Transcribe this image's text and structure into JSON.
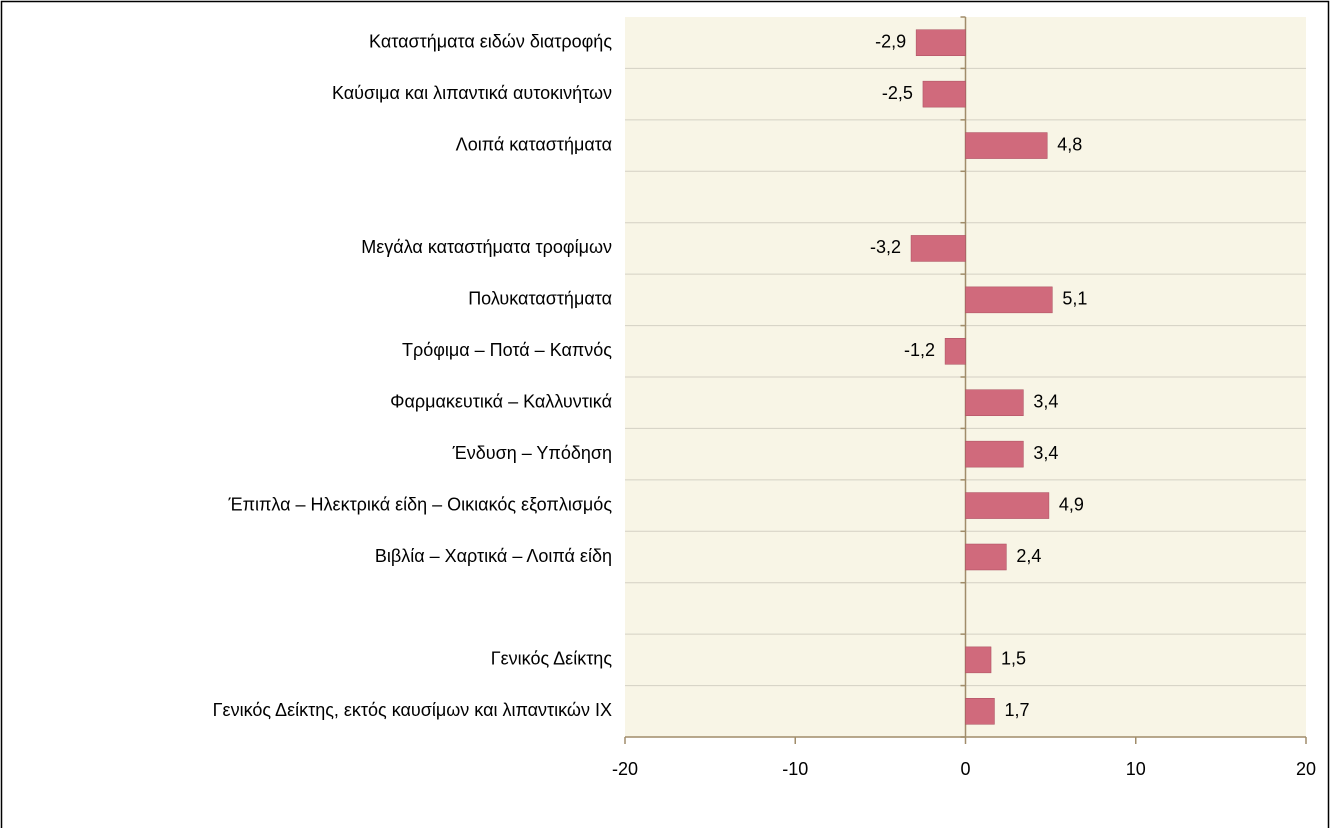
{
  "chart_data": {
    "type": "hbar",
    "categories": [
      "Καταστήματα ειδών διατροφής",
      "Καύσιμα και λιπαντικά αυτοκινήτων",
      "Λοιπά καταστήματα",
      null,
      "Μεγάλα καταστήματα τροφίμων",
      "Πολυκαταστήματα",
      "Τρόφιμα – Ποτά – Καπνός",
      "Φαρμακευτικά – Καλλυντικά",
      "Ένδυση – Υπόδηση",
      "Έπιπλα – Ηλεκτρικά είδη – Οικιακός εξοπλισμός",
      "Βιβλία – Χαρτικά – Λοιπά είδη",
      null,
      "Γενικός Δείκτης",
      "Γενικός Δείκτης, εκτός καυσίμων και λιπαντικών ΙΧ"
    ],
    "values": [
      -2.9,
      -2.5,
      4.8,
      null,
      -3.2,
      5.1,
      -1.2,
      3.4,
      3.4,
      4.9,
      2.4,
      null,
      1.5,
      1.7
    ],
    "value_labels": [
      "-2,9",
      "-2,5",
      "4,8",
      null,
      "-3,2",
      "5,1",
      "-1,2",
      "3,4",
      "3,4",
      "4,9",
      "2,4",
      null,
      "1,5",
      "1,7"
    ],
    "color": "#d06a7c",
    "xlim": [
      -20,
      20
    ],
    "xticks": [
      -20,
      -10,
      0,
      10,
      20
    ],
    "grid": true
  }
}
